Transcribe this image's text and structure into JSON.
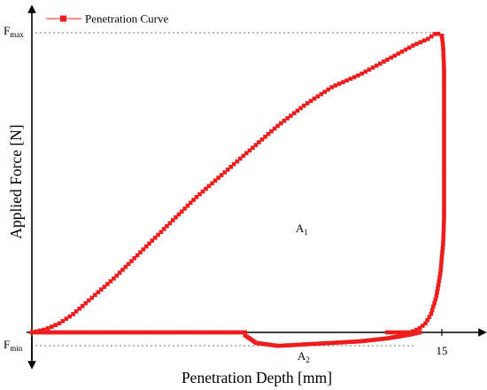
{
  "chart_data": {
    "type": "scatter",
    "xlabel": "Penetration Depth [mm]",
    "ylabel": "Applied Force [N]",
    "x_tick_labels": [
      {
        "value": 15,
        "label": "15"
      }
    ],
    "y_markers": [
      {
        "name": "F_max",
        "main": "F",
        "sub": "max",
        "value": 1.0
      },
      {
        "name": "F_min",
        "main": "F",
        "sub": "min",
        "value": -0.05
      }
    ],
    "area_labels": [
      {
        "main": "A",
        "sub": "1",
        "x": 9.5,
        "y": 0.38
      },
      {
        "main": "A",
        "sub": "2",
        "x": 9.5,
        "y": -0.09
      }
    ],
    "legend": {
      "label": "Penetration Curve",
      "position": "top-left"
    },
    "series": [
      {
        "name": "Penetration Curve",
        "color": "#ee1c1c",
        "marker": "square",
        "loading_curve": {
          "x": [
            0,
            0.5,
            1.0,
            1.5,
            2.0,
            2.5,
            3.0,
            4.0,
            5.0,
            6.0,
            7.0,
            8.0,
            9.0,
            10.0,
            11.0,
            12.0,
            13.0,
            14.0,
            14.5,
            14.8,
            15.0
          ],
          "y": [
            0,
            0.01,
            0.03,
            0.06,
            0.1,
            0.14,
            0.18,
            0.27,
            0.36,
            0.45,
            0.53,
            0.61,
            0.69,
            0.76,
            0.82,
            0.86,
            0.91,
            0.96,
            0.98,
            1.0,
            0.99
          ]
        },
        "unloading_curve": {
          "x": [
            15.0,
            15.05,
            15.08,
            15.08,
            15.08,
            15.05,
            14.95,
            14.8,
            14.6,
            14.4,
            14.2,
            14.0,
            13.8,
            13.4,
            13.0
          ],
          "y": [
            0.99,
            0.95,
            0.88,
            0.65,
            0.38,
            0.3,
            0.2,
            0.12,
            0.06,
            0.03,
            0.015,
            0.005,
            0.0,
            0.0,
            0.0
          ]
        },
        "baseline_left": {
          "x": [
            0,
            7.8
          ],
          "y": [
            0.0,
            0.0
          ]
        },
        "baseline_right": {
          "x": [
            7.8,
            8.2,
            9.0,
            10.0,
            11.0,
            12.0,
            13.0,
            13.8,
            14.2
          ],
          "y": [
            -0.01,
            -0.035,
            -0.045,
            -0.04,
            -0.035,
            -0.03,
            -0.02,
            -0.008,
            0.0
          ]
        }
      }
    ],
    "xlim": [
      0,
      16.5
    ],
    "ylim": [
      -0.1,
      1.1
    ],
    "grid": false
  }
}
